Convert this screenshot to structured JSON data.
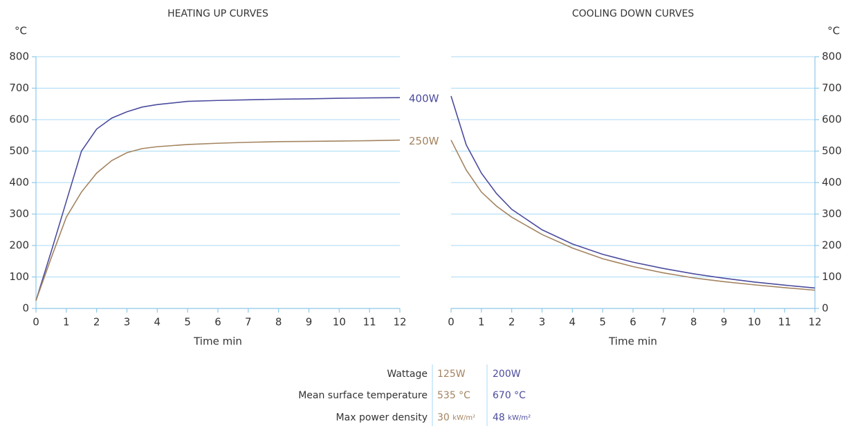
{
  "chart_data": [
    {
      "type": "line",
      "title": "HEATING UP CURVES",
      "y_label": "°C",
      "x_label": "Time min",
      "x": [
        0,
        0.5,
        1,
        1.5,
        2,
        2.5,
        3,
        3.5,
        4,
        5,
        6,
        7,
        8,
        9,
        10,
        11,
        12
      ],
      "xlim": [
        0,
        12
      ],
      "xticks": [
        0,
        1,
        2,
        3,
        4,
        5,
        6,
        7,
        8,
        9,
        10,
        11,
        12
      ],
      "ylim": [
        0,
        800
      ],
      "yticks": [
        0,
        100,
        200,
        300,
        400,
        500,
        600,
        700,
        800
      ],
      "grid": true,
      "y_axis_side": "left",
      "series": [
        {
          "name": "400W",
          "color": "#4b4b9e",
          "values": [
            25,
            180,
            340,
            500,
            570,
            605,
            625,
            640,
            648,
            658,
            661,
            663,
            665,
            666,
            668,
            669,
            670
          ]
        },
        {
          "name": "250W",
          "color": "#a3835f",
          "values": [
            25,
            160,
            290,
            370,
            430,
            470,
            495,
            508,
            514,
            521,
            525,
            528,
            530,
            531,
            532,
            533,
            535
          ]
        }
      ]
    },
    {
      "type": "line",
      "title": "COOLING DOWN CURVES",
      "y_label": "°C",
      "x_label": "Time min",
      "x": [
        0,
        0.5,
        1,
        1.5,
        2,
        3,
        4,
        5,
        6,
        7,
        8,
        9,
        10,
        11,
        12
      ],
      "xlim": [
        0,
        12
      ],
      "xticks": [
        0,
        1,
        2,
        3,
        4,
        5,
        6,
        7,
        8,
        9,
        10,
        11,
        12
      ],
      "ylim": [
        0,
        800
      ],
      "yticks": [
        0,
        100,
        200,
        300,
        400,
        500,
        600,
        700,
        800
      ],
      "grid": true,
      "y_axis_side": "right",
      "series": [
        {
          "color": "#4b4b9e",
          "values": [
            675,
            520,
            430,
            365,
            315,
            250,
            205,
            172,
            147,
            127,
            110,
            96,
            84,
            74,
            65
          ]
        },
        {
          "color": "#a3835f",
          "values": [
            535,
            440,
            370,
            325,
            290,
            235,
            192,
            158,
            133,
            113,
            97,
            85,
            75,
            66,
            58
          ]
        }
      ]
    }
  ],
  "table": {
    "rows": [
      [
        "Wattage",
        "125W",
        "200W"
      ],
      [
        "Mean surface temperature",
        "535 °C",
        "670 °C"
      ],
      [
        "Max power density",
        {
          "value": "30",
          "unit": "kW/m²"
        },
        {
          "value": "48",
          "unit": "kW/m²"
        }
      ]
    ]
  }
}
